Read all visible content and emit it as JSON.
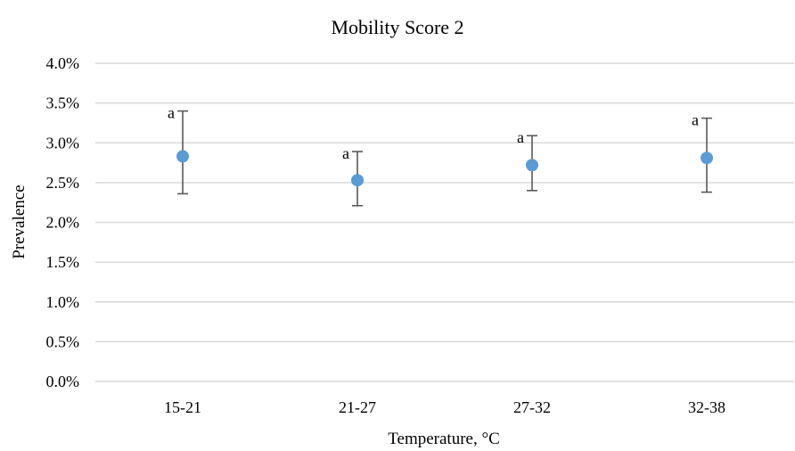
{
  "chart_data": {
    "type": "scatter",
    "title": "Mobility Score 2",
    "xlabel": "Temperature, °C",
    "ylabel": "Prevalence",
    "categories": [
      "15-21",
      "21-27",
      "27-32",
      "32-38"
    ],
    "ylim": [
      0,
      4.0
    ],
    "y_unit": "%",
    "y_ticks": [
      "0.0%",
      "0.5%",
      "1.0%",
      "1.5%",
      "2.0%",
      "2.5%",
      "3.0%",
      "3.5%",
      "4.0%"
    ],
    "grid": true,
    "series": [
      {
        "values": [
          2.83,
          2.53,
          2.72,
          2.81
        ],
        "error_low": [
          2.36,
          2.21,
          2.4,
          2.38
        ],
        "error_high": [
          3.4,
          2.89,
          3.09,
          3.31
        ],
        "annotations": [
          "a",
          "a",
          "a",
          "a"
        ],
        "color": "#5b9bd5"
      }
    ]
  }
}
